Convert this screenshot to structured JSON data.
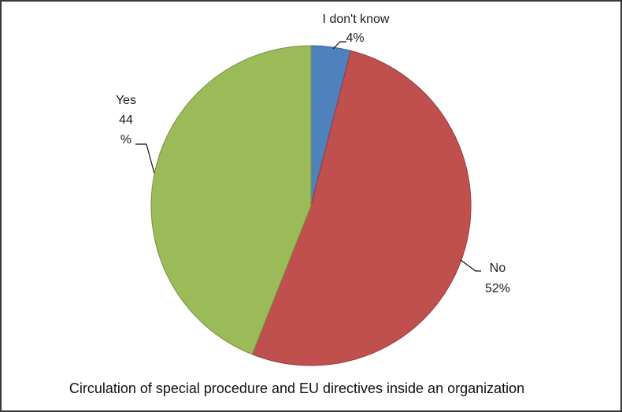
{
  "chart_data": {
    "type": "pie",
    "title": "Circulation of special procedure and EU directives inside an organization",
    "slices": [
      {
        "label": "I don't know",
        "value": 4,
        "value_text": "4%",
        "color": "#4f81bd"
      },
      {
        "label": "No",
        "value": 52,
        "value_text": "52%",
        "color": "#c0504d"
      },
      {
        "label": "Yes",
        "value": 44,
        "value_text_lines": [
          "44",
          "%"
        ],
        "color": "#9bbb59"
      }
    ],
    "start_angle": "12 o'clock",
    "direction": "clockwise",
    "legend": "none"
  }
}
